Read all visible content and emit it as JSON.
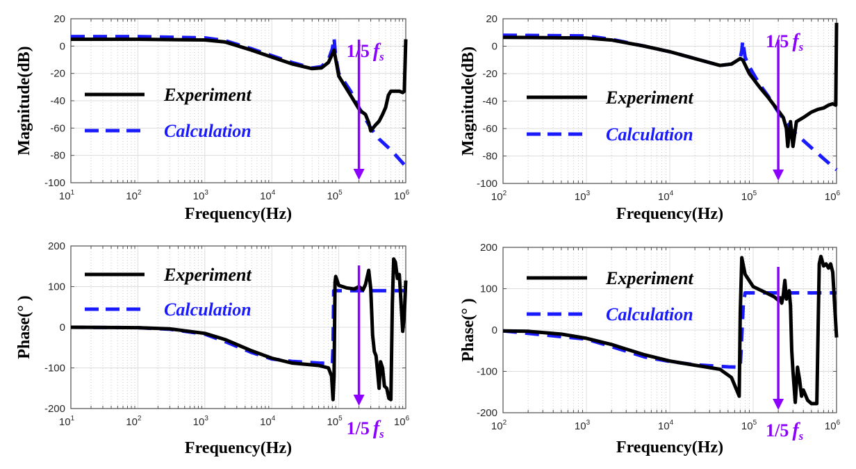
{
  "colors": {
    "experiment": "#000000",
    "calculation": "#1a1aff",
    "marker": "#8b00ff",
    "grid_major": "#dcdcdc",
    "grid_minor": "#c8c8c8",
    "axis": "#4d4d4d"
  },
  "chart_data": [
    {
      "id": "mag-left",
      "type": "line",
      "xscale": "log",
      "xlabel": "Frequency(Hz)",
      "ylabel": "Magnitude(dB)",
      "xlim": [
        10,
        1000000
      ],
      "ylim": [
        -100,
        20
      ],
      "xticks": [
        {
          "base": "10",
          "exp": "1"
        },
        {
          "base": "10",
          "exp": "2"
        },
        {
          "base": "10",
          "exp": "3"
        },
        {
          "base": "10",
          "exp": "4"
        },
        {
          "base": "10",
          "exp": "5"
        },
        {
          "base": "10",
          "exp": "6"
        }
      ],
      "yticks": [
        "20",
        "0",
        "-20",
        "-40",
        "-60",
        "-80",
        "-100"
      ],
      "ytick_values": [
        20,
        0,
        -20,
        -40,
        -60,
        -80,
        -100
      ],
      "grid": true,
      "legend": {
        "position": "left-middle",
        "entries": [
          "Experiment",
          "Calculation"
        ]
      },
      "annotation": {
        "text": "1/5",
        "f": "f",
        "sub": "s",
        "x": 200000,
        "label_position": "top"
      },
      "series": [
        {
          "name": "Experiment",
          "style": "solid",
          "x": [
            10,
            100,
            1000,
            2000,
            5000,
            10000,
            20000,
            40000,
            55000,
            70000,
            85000,
            100000,
            150000,
            200000,
            220000,
            250000,
            280000,
            300000,
            350000,
            400000,
            450000,
            500000,
            550000,
            600000,
            700000,
            800000,
            900000,
            950000,
            1000000
          ],
          "y": [
            5,
            5,
            4.5,
            3,
            -3,
            -8,
            -13,
            -16.5,
            -16,
            -12,
            -3,
            -22,
            -36,
            -46,
            -48,
            -50,
            -56,
            -62,
            -58,
            -55,
            -50,
            -45,
            -36,
            -33,
            -33,
            -33,
            -34,
            -33,
            5
          ]
        },
        {
          "name": "Calculation",
          "style": "dashed",
          "x": [
            10,
            100,
            1000,
            2000,
            5000,
            10000,
            20000,
            40000,
            55000,
            70000,
            80000,
            85000,
            90000,
            100000,
            150000,
            200000,
            300000,
            400000,
            600000,
            1000000
          ],
          "y": [
            7,
            7,
            6,
            4,
            -2,
            -7,
            -12,
            -16,
            -15,
            -10,
            -2,
            6,
            -8,
            -20,
            -33,
            -45,
            -60,
            -68,
            -76,
            -88
          ]
        }
      ]
    },
    {
      "id": "mag-right",
      "type": "line",
      "xscale": "log",
      "xlabel": "Frequency(Hz)",
      "ylabel": "Magnitude(dB)",
      "xlim": [
        100,
        1000000
      ],
      "ylim": [
        -100,
        20
      ],
      "xticks": [
        {
          "base": "10",
          "exp": "2"
        },
        {
          "base": "10",
          "exp": "3"
        },
        {
          "base": "10",
          "exp": "4"
        },
        {
          "base": "10",
          "exp": "5"
        },
        {
          "base": "10",
          "exp": "6"
        }
      ],
      "yticks": [
        "20",
        "0",
        "-20",
        "-40",
        "-60",
        "-80",
        "-100"
      ],
      "ytick_values": [
        20,
        0,
        -20,
        -40,
        -60,
        -80,
        -100
      ],
      "grid": true,
      "legend": {
        "position": "left-middle",
        "entries": [
          "Experiment",
          "Calculation"
        ]
      },
      "annotation": {
        "text": "1/5",
        "f": "f",
        "sub": "s",
        "x": 200000,
        "label_position": "top"
      },
      "series": [
        {
          "name": "Experiment",
          "style": "solid",
          "x": [
            100,
            1000,
            2000,
            5000,
            10000,
            20000,
            40000,
            55000,
            70000,
            75000,
            90000,
            120000,
            150000,
            200000,
            230000,
            250000,
            260000,
            280000,
            300000,
            330000,
            400000,
            500000,
            600000,
            700000,
            800000,
            900000,
            980000,
            1000000
          ],
          "y": [
            6.5,
            6,
            4.5,
            0,
            -4,
            -9,
            -14,
            -13,
            -9,
            -10,
            -20,
            -30,
            -37,
            -47,
            -52,
            -60,
            -73,
            -55,
            -73,
            -55,
            -52,
            -48,
            -46,
            -45,
            -43,
            -42,
            -43,
            17
          ]
        },
        {
          "name": "Calculation",
          "style": "dashed",
          "x": [
            100,
            1000,
            2000,
            5000,
            10000,
            20000,
            40000,
            55000,
            70000,
            73000,
            75000,
            80000,
            90000,
            120000,
            150000,
            200000,
            300000,
            500000,
            700000,
            1000000
          ],
          "y": [
            8,
            7.5,
            5,
            0,
            -4,
            -9,
            -14,
            -13,
            -9,
            -3,
            4,
            -8,
            -15,
            -28,
            -36,
            -48,
            -62,
            -74,
            -82,
            -90
          ]
        }
      ]
    },
    {
      "id": "phase-left",
      "type": "line",
      "xscale": "log",
      "xlabel": "Frequency(Hz)",
      "ylabel": "Phase(°  )",
      "xlim": [
        10,
        1000000
      ],
      "ylim": [
        -200,
        200
      ],
      "xticks": [
        {
          "base": "10",
          "exp": "1"
        },
        {
          "base": "10",
          "exp": "2"
        },
        {
          "base": "10",
          "exp": "3"
        },
        {
          "base": "10",
          "exp": "4"
        },
        {
          "base": "10",
          "exp": "5"
        },
        {
          "base": "10",
          "exp": "6"
        }
      ],
      "yticks": [
        "200",
        "100",
        "0",
        "-100",
        "-200"
      ],
      "ytick_values": [
        200,
        100,
        0,
        -100,
        -200
      ],
      "grid": true,
      "legend": {
        "position": "top-left",
        "entries": [
          "Experiment",
          "Calculation"
        ]
      },
      "annotation": {
        "text": "1/5",
        "f": "f",
        "sub": "s",
        "x": 200000,
        "label_position": "bottom"
      },
      "series": [
        {
          "name": "Experiment",
          "style": "solid",
          "x": [
            10,
            100,
            300,
            1000,
            2000,
            5000,
            10000,
            20000,
            50000,
            70000,
            78000,
            82000,
            85000,
            88000,
            90000,
            100000,
            130000,
            170000,
            200000,
            230000,
            250000,
            280000,
            300000,
            320000,
            340000,
            360000,
            380000,
            400000,
            420000,
            450000,
            480000,
            520000,
            560000,
            600000,
            630000,
            660000,
            700000,
            750000,
            800000,
            850000,
            900000,
            950000,
            1000000
          ],
          "y": [
            0,
            -1,
            -4,
            -15,
            -30,
            -58,
            -76,
            -88,
            -94,
            -100,
            -120,
            -178,
            -120,
            110,
            125,
            103,
            97,
            94,
            100,
            92,
            105,
            140,
            95,
            -20,
            -60,
            -70,
            -110,
            -150,
            -85,
            -100,
            -145,
            -150,
            -175,
            -178,
            60,
            168,
            160,
            120,
            130,
            60,
            -10,
            30,
            115
          ]
        },
        {
          "name": "Calculation",
          "style": "dashed",
          "x": [
            10,
            100,
            300,
            1000,
            2000,
            5000,
            10000,
            20000,
            50000,
            80000,
            82000,
            84000,
            100000,
            200000,
            1000000
          ],
          "y": [
            0,
            -1,
            -5,
            -17,
            -35,
            -62,
            -78,
            -84,
            -88,
            -89,
            -50,
            90,
            90,
            90,
            90
          ]
        }
      ]
    },
    {
      "id": "phase-right",
      "type": "line",
      "xscale": "log",
      "xlabel": "Frequency(Hz)",
      "ylabel": "Phase(°  )",
      "xlim": [
        100,
        1000000
      ],
      "ylim": [
        -200,
        200
      ],
      "xticks": [
        {
          "base": "10",
          "exp": "2"
        },
        {
          "base": "10",
          "exp": "3"
        },
        {
          "base": "10",
          "exp": "4"
        },
        {
          "base": "10",
          "exp": "5"
        },
        {
          "base": "10",
          "exp": "6"
        }
      ],
      "yticks": [
        "200",
        "100",
        "0",
        "-100",
        "-200"
      ],
      "ytick_values": [
        200,
        100,
        0,
        -100,
        -200
      ],
      "grid": true,
      "legend": {
        "position": "top-left",
        "entries": [
          "Experiment",
          "Calculation"
        ]
      },
      "annotation": {
        "text": "1/5",
        "f": "f",
        "sub": "s",
        "x": 200000,
        "label_position": "bottom"
      },
      "series": [
        {
          "name": "Experiment",
          "style": "solid",
          "x": [
            100,
            200,
            500,
            1000,
            2000,
            5000,
            10000,
            20000,
            40000,
            55000,
            65000,
            68000,
            70000,
            73000,
            80000,
            100000,
            150000,
            180000,
            200000,
            210000,
            220000,
            230000,
            240000,
            250000,
            270000,
            280000,
            290000,
            300000,
            320000,
            340000,
            360000,
            380000,
            400000,
            450000,
            500000,
            580000,
            620000,
            650000,
            700000,
            750000,
            800000,
            850000,
            900000,
            1000000
          ],
          "y": [
            -2,
            -3,
            -10,
            -20,
            -35,
            -60,
            -75,
            -85,
            -95,
            -115,
            -150,
            -160,
            40,
            175,
            135,
            105,
            88,
            80,
            72,
            78,
            65,
            85,
            120,
            75,
            95,
            60,
            -50,
            -100,
            -175,
            -90,
            -120,
            -160,
            -145,
            -170,
            -178,
            -178,
            160,
            178,
            155,
            160,
            150,
            160,
            140,
            -18
          ]
        },
        {
          "name": "Calculation",
          "style": "dashed",
          "x": [
            100,
            1000,
            2000,
            5000,
            10000,
            20000,
            50000,
            70000,
            72000,
            76000,
            80000,
            200000,
            1000000
          ],
          "y": [
            -2,
            -22,
            -40,
            -65,
            -76,
            -84,
            -89,
            -90,
            -40,
            60,
            90,
            90,
            90
          ]
        }
      ]
    }
  ]
}
